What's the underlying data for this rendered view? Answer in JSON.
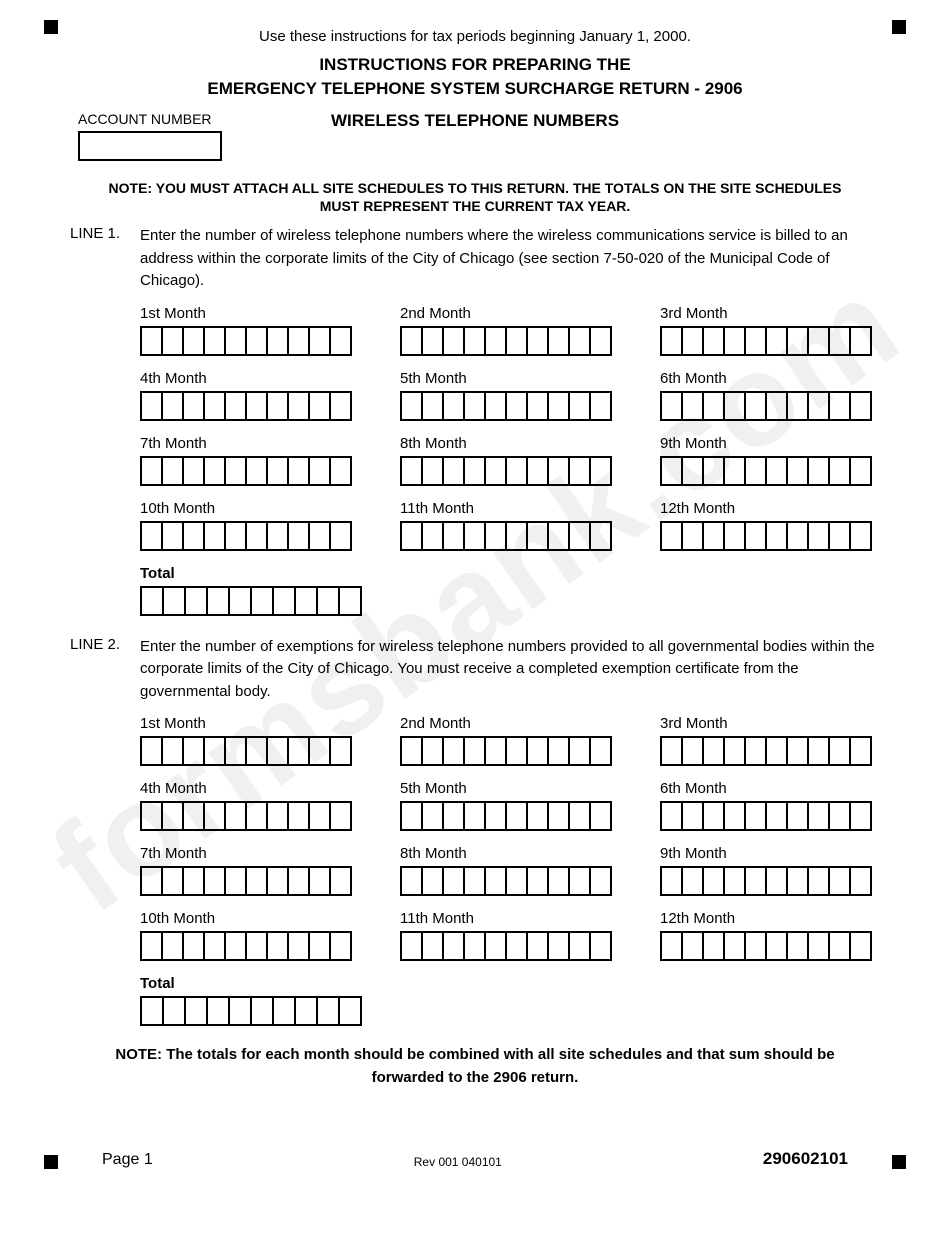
{
  "watermark_text": "formsbank.com",
  "intro_text": "Use these instructions for tax periods beginning January 1, 2000.",
  "title_line1": "INSTRUCTIONS FOR PREPARING THE",
  "title_line2": "EMERGENCY TELEPHONE SYSTEM SURCHARGE RETURN - 2906",
  "title_line3": "WIRELESS TELEPHONE NUMBERS",
  "account_label": "ACCOUNT NUMBER",
  "attach_note": "NOTE: YOU MUST ATTACH ALL SITE SCHEDULES TO THIS RETURN. THE TOTALS ON THE SITE SCHEDULES MUST REPRESENT THE CURRENT TAX YEAR.",
  "line1_label": "LINE 1.",
  "line1_text": "Enter the number of wireless telephone numbers where the wireless communications service is billed to an address within the corporate limits of the City of Chicago (see section 7-50-020 of the Municipal Code of Chicago).",
  "line2_label": "LINE 2.",
  "line2_text": "Enter the number of exemptions for wireless telephone numbers provided to all governmental bodies within the corporate limits of the City of Chicago. You must receive a completed exemption certificate from the governmental body.",
  "months": [
    "1st Month",
    "2nd Month",
    "3rd Month",
    "4th Month",
    "5th Month",
    "6th Month",
    "7th Month",
    "8th Month",
    "9th Month",
    "10th Month",
    "11th Month",
    "12th Month"
  ],
  "total_label": "Total",
  "cells_per_month": 10,
  "cells_total": 10,
  "bottom_note": "NOTE:  The totals for each month should be combined with all site schedules and that sum should be forwarded to the 2906 return.",
  "page_number": "Page 1",
  "revision": "Rev 001 040101",
  "form_code": "290602101",
  "colors": {
    "text": "#000000",
    "background": "#ffffff",
    "watermark": "#f0f0f0",
    "border": "#000000"
  }
}
